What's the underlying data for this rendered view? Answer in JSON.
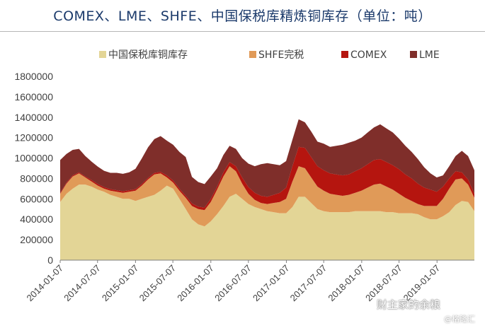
{
  "page": {
    "title": "COMEX、LME、SHFE、中国保税库精炼铜库存（单位：吨）"
  },
  "watermark": {
    "main": "财主家的余粮",
    "sub": "@格隆汇"
  },
  "chart_data": {
    "type": "area",
    "stacked": true,
    "title": "COMEX、LME、SHFE、中国保税库精炼铜库存（单位：吨）",
    "ylim": [
      0,
      1800000
    ],
    "yticks": [
      "0",
      "200000",
      "400000",
      "600000",
      "800000",
      "1000000",
      "1200000",
      "1400000",
      "1600000",
      "1800000"
    ],
    "xticks": [
      "2014-01-07",
      "2014-07-07",
      "2015-01-07",
      "2015-07-07",
      "2016-01-07",
      "2016-07-07",
      "2017-01-07",
      "2017-07-07",
      "2018-01-07",
      "2018-07-07",
      "2019-01-07"
    ],
    "x": [
      "2014-01",
      "2014-02",
      "2014-03",
      "2014-04",
      "2014-05",
      "2014-06",
      "2014-07",
      "2014-08",
      "2014-09",
      "2014-10",
      "2014-11",
      "2014-12",
      "2015-01",
      "2015-02",
      "2015-03",
      "2015-04",
      "2015-05",
      "2015-06",
      "2015-07",
      "2015-08",
      "2015-09",
      "2015-10",
      "2015-11",
      "2015-12",
      "2016-01",
      "2016-02",
      "2016-03",
      "2016-04",
      "2016-05",
      "2016-06",
      "2016-07",
      "2016-08",
      "2016-09",
      "2016-10",
      "2016-11",
      "2016-12",
      "2017-01",
      "2017-02",
      "2017-03",
      "2017-04",
      "2017-05",
      "2017-06",
      "2017-07",
      "2017-08",
      "2017-09",
      "2017-10",
      "2017-11",
      "2017-12",
      "2018-01",
      "2018-02",
      "2018-03",
      "2018-04",
      "2018-05",
      "2018-06",
      "2018-07",
      "2018-08",
      "2018-09",
      "2018-10",
      "2018-11",
      "2018-12",
      "2019-01",
      "2019-02",
      "2019-03",
      "2019-04",
      "2019-05",
      "2019-06",
      "2019-07"
    ],
    "legend_position": "top",
    "series": [
      {
        "name": "中国保税库铜库存",
        "color": "#e3d596",
        "values": [
          570000,
          650000,
          700000,
          740000,
          740000,
          720000,
          690000,
          670000,
          640000,
          620000,
          600000,
          600000,
          580000,
          600000,
          620000,
          640000,
          680000,
          730000,
          700000,
          600000,
          500000,
          400000,
          350000,
          330000,
          380000,
          450000,
          530000,
          620000,
          650000,
          600000,
          550000,
          520000,
          500000,
          480000,
          470000,
          460000,
          460000,
          520000,
          620000,
          620000,
          560000,
          500000,
          480000,
          470000,
          470000,
          470000,
          470000,
          480000,
          480000,
          480000,
          480000,
          480000,
          470000,
          470000,
          460000,
          460000,
          460000,
          450000,
          420000,
          400000,
          400000,
          430000,
          470000,
          540000,
          580000,
          570000,
          480000
        ]
      },
      {
        "name": "SHFE完税",
        "color": "#e09a58",
        "values": [
          80000,
          100000,
          120000,
          110000,
          70000,
          50000,
          40000,
          30000,
          40000,
          50000,
          60000,
          70000,
          100000,
          130000,
          170000,
          200000,
          170000,
          80000,
          60000,
          80000,
          110000,
          130000,
          150000,
          160000,
          190000,
          240000,
          290000,
          300000,
          220000,
          150000,
          100000,
          70000,
          60000,
          70000,
          90000,
          110000,
          140000,
          250000,
          300000,
          280000,
          250000,
          220000,
          200000,
          180000,
          170000,
          160000,
          170000,
          180000,
          200000,
          230000,
          260000,
          270000,
          250000,
          220000,
          190000,
          150000,
          120000,
          100000,
          110000,
          130000,
          130000,
          170000,
          230000,
          250000,
          220000,
          170000,
          130000
        ]
      },
      {
        "name": "COMEX",
        "color": "#b5150f",
        "values": [
          10000,
          10000,
          10000,
          10000,
          10000,
          15000,
          15000,
          15000,
          15000,
          15000,
          15000,
          15000,
          15000,
          15000,
          15000,
          15000,
          15000,
          20000,
          20000,
          20000,
          20000,
          25000,
          25000,
          25000,
          30000,
          30000,
          40000,
          40000,
          50000,
          60000,
          65000,
          70000,
          70000,
          70000,
          80000,
          90000,
          110000,
          150000,
          190000,
          200000,
          200000,
          200000,
          200000,
          200000,
          200000,
          200000,
          200000,
          210000,
          220000,
          230000,
          240000,
          240000,
          240000,
          240000,
          240000,
          230000,
          220000,
          200000,
          180000,
          160000,
          140000,
          120000,
          100000,
          80000,
          60000,
          50000,
          40000
        ]
      },
      {
        "name": "LME",
        "color": "#7f2e2a",
        "values": [
          320000,
          280000,
          250000,
          230000,
          200000,
          180000,
          170000,
          160000,
          160000,
          170000,
          170000,
          175000,
          200000,
          250000,
          300000,
          330000,
          350000,
          340000,
          350000,
          360000,
          380000,
          260000,
          240000,
          230000,
          220000,
          180000,
          170000,
          160000,
          170000,
          190000,
          230000,
          260000,
          310000,
          330000,
          300000,
          270000,
          260000,
          260000,
          270000,
          250000,
          250000,
          240000,
          260000,
          260000,
          280000,
          300000,
          310000,
          300000,
          300000,
          310000,
          320000,
          340000,
          330000,
          320000,
          300000,
          280000,
          260000,
          240000,
          200000,
          160000,
          140000,
          110000,
          120000,
          150000,
          210000,
          230000,
          230000
        ]
      }
    ]
  }
}
